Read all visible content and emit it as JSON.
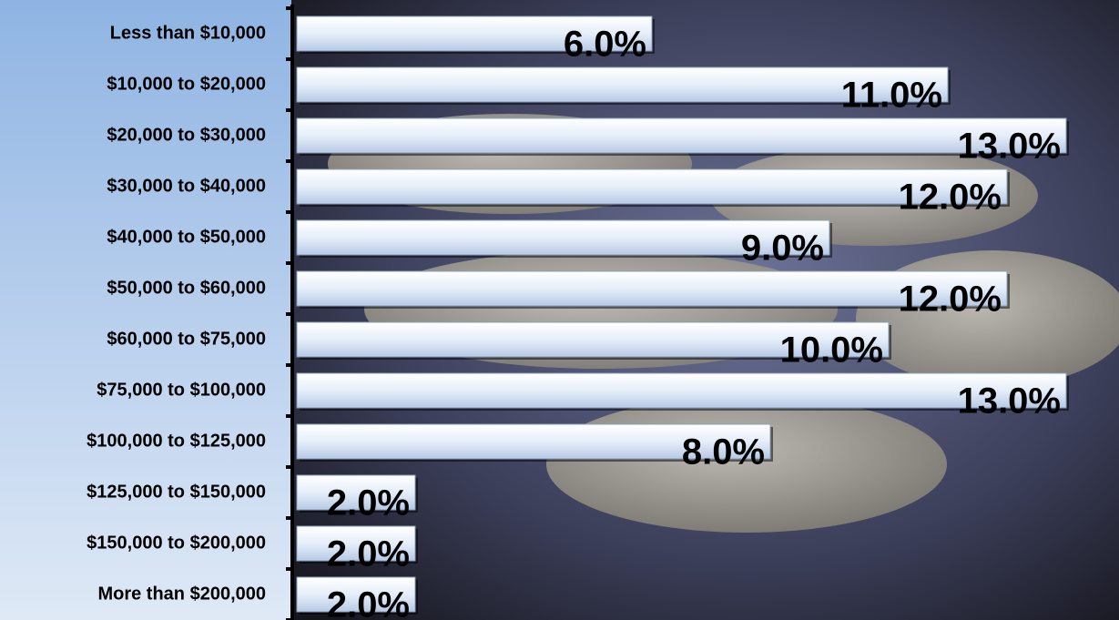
{
  "chart_data": {
    "type": "barh",
    "categories": [
      "Less than $10,000",
      "$10,000 to $20,000",
      "$20,000 to $30,000",
      "$30,000 to $40,000",
      "$40,000 to $50,000",
      "$50,000 to $60,000",
      "$60,000 to $75,000",
      "$75,000 to $100,000",
      "$100,000 to $125,000",
      "$125,000 to $150,000",
      "$150,000 to $200,000",
      "More than $200,000"
    ],
    "values": [
      6,
      11,
      13,
      12,
      9,
      12,
      10,
      13,
      8,
      2,
      2,
      2
    ],
    "value_labels": [
      "6.0%",
      "11.0%",
      "13.0%",
      "12.0%",
      "9.0%",
      "12.0%",
      "10.0%",
      "13.0%",
      "8.0%",
      "2.0%",
      "2.0%",
      "2.0%"
    ],
    "xlim": [
      0,
      13
    ],
    "color": "#dce8f8"
  }
}
